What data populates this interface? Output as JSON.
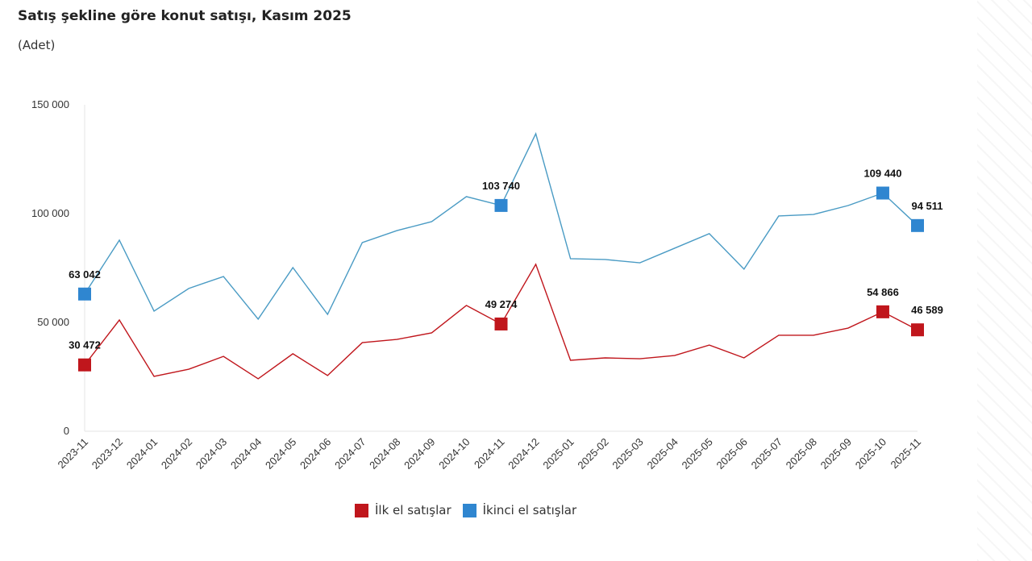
{
  "chart_data": {
    "type": "line",
    "title": "Satış şekline göre konut satışı, Kasım 2025",
    "subtitle": "(Adet)",
    "xlabel": "",
    "ylabel": "",
    "ylim": [
      0,
      150000
    ],
    "yticks": [
      0,
      50000,
      100000,
      150000
    ],
    "ytick_labels": [
      "0",
      "50 000",
      "100 000",
      "150 000"
    ],
    "grid": false,
    "legend_position": "bottom",
    "categories": [
      "2023-11",
      "2023-12",
      "2024-01",
      "2024-02",
      "2024-03",
      "2024-04",
      "2024-05",
      "2024-06",
      "2024-07",
      "2024-08",
      "2024-09",
      "2024-10",
      "2024-11",
      "2024-12",
      "2025-01",
      "2025-02",
      "2025-03",
      "2025-04",
      "2025-05",
      "2025-06",
      "2025-07",
      "2025-08",
      "2025-09",
      "2025-10",
      "2025-11"
    ],
    "series": [
      {
        "name": "İlk el satışlar",
        "color": "#c0161c",
        "values": [
          30472,
          51100,
          25200,
          28500,
          34400,
          24100,
          35600,
          25600,
          40700,
          42200,
          45200,
          57800,
          49274,
          76700,
          32600,
          33700,
          33300,
          34800,
          39600,
          33700,
          44100,
          44100,
          47400,
          54866,
          46589
        ],
        "labeled_points": [
          {
            "index": 0,
            "label": "30 472"
          },
          {
            "index": 12,
            "label": "49 274"
          },
          {
            "index": 23,
            "label": "54 866"
          },
          {
            "index": 24,
            "label": "46 589"
          }
        ]
      },
      {
        "name": "İkinci el satışlar",
        "color": "#2f86d0",
        "line_color": "#4a9bc4",
        "values": [
          63042,
          87800,
          55200,
          65600,
          71100,
          51500,
          75200,
          53700,
          86700,
          92200,
          96300,
          107800,
          103740,
          136700,
          79300,
          78900,
          77400,
          84100,
          90800,
          74500,
          98900,
          99600,
          103700,
          109440,
          94511
        ],
        "labeled_points": [
          {
            "index": 0,
            "label": "63 042"
          },
          {
            "index": 12,
            "label": "103 740"
          },
          {
            "index": 23,
            "label": "109 440"
          },
          {
            "index": 24,
            "label": "94 511"
          }
        ]
      }
    ]
  }
}
